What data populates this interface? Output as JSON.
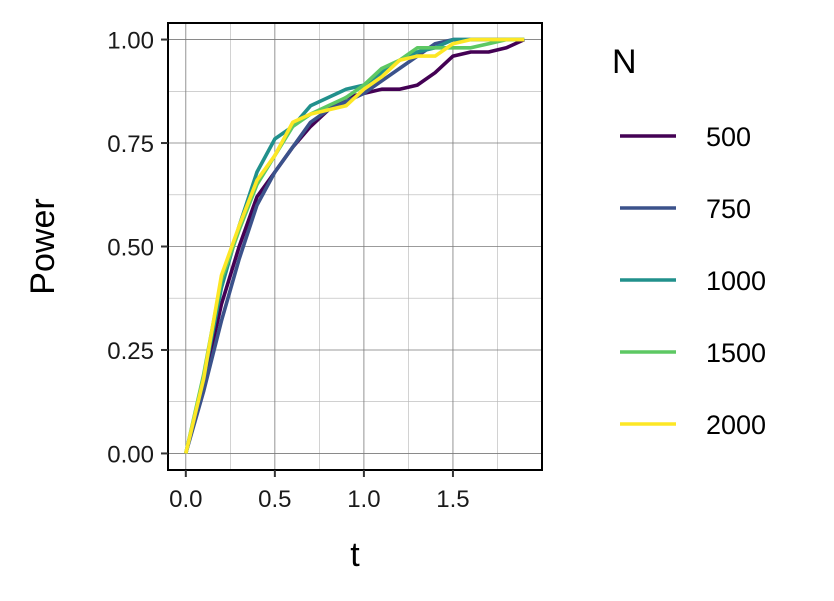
{
  "chart_data": {
    "type": "line",
    "xlabel": "t",
    "ylabel": "Power",
    "xlim": [
      -0.1,
      2.0
    ],
    "ylim": [
      -0.04,
      1.04
    ],
    "xticks": [
      0.0,
      0.5,
      1.0,
      1.5
    ],
    "xtick_labels": [
      "0.0",
      "0.5",
      "1.0",
      "1.5"
    ],
    "yticks": [
      0.0,
      0.25,
      0.5,
      0.75,
      1.0
    ],
    "ytick_labels": [
      "0.00",
      "0.25",
      "0.50",
      "0.75",
      "1.00"
    ],
    "grid": true,
    "legend": {
      "title": "N",
      "position": "right"
    },
    "x": [
      0.0,
      0.1,
      0.2,
      0.3,
      0.4,
      0.5,
      0.6,
      0.7,
      0.8,
      0.9,
      1.0,
      1.1,
      1.2,
      1.3,
      1.4,
      1.5,
      1.6,
      1.7,
      1.8,
      1.9
    ],
    "series": [
      {
        "name": "500",
        "color": "#440154",
        "values": [
          0.0,
          0.17,
          0.36,
          0.5,
          0.62,
          0.68,
          0.74,
          0.79,
          0.83,
          0.86,
          0.87,
          0.88,
          0.88,
          0.89,
          0.92,
          0.96,
          0.97,
          0.97,
          0.98,
          1.0
        ]
      },
      {
        "name": "750",
        "color": "#3B528B",
        "values": [
          0.0,
          0.15,
          0.32,
          0.47,
          0.6,
          0.68,
          0.74,
          0.8,
          0.83,
          0.85,
          0.87,
          0.9,
          0.93,
          0.96,
          0.99,
          1.0,
          1.0,
          1.0,
          1.0,
          1.0
        ]
      },
      {
        "name": "1000",
        "color": "#21908C",
        "values": [
          0.0,
          0.18,
          0.4,
          0.55,
          0.68,
          0.76,
          0.79,
          0.84,
          0.86,
          0.88,
          0.89,
          0.92,
          0.95,
          0.97,
          0.98,
          1.0,
          1.0,
          1.0,
          1.0,
          1.0
        ]
      },
      {
        "name": "1500",
        "color": "#5DC863",
        "values": [
          0.0,
          0.19,
          0.42,
          0.54,
          0.65,
          0.72,
          0.79,
          0.82,
          0.84,
          0.86,
          0.89,
          0.93,
          0.95,
          0.98,
          0.98,
          0.98,
          0.98,
          0.99,
          1.0,
          1.0
        ]
      },
      {
        "name": "2000",
        "color": "#FDE725",
        "values": [
          0.0,
          0.18,
          0.43,
          0.55,
          0.66,
          0.72,
          0.8,
          0.82,
          0.83,
          0.84,
          0.88,
          0.91,
          0.95,
          0.96,
          0.96,
          0.99,
          1.0,
          1.0,
          1.0,
          1.0
        ]
      }
    ]
  }
}
